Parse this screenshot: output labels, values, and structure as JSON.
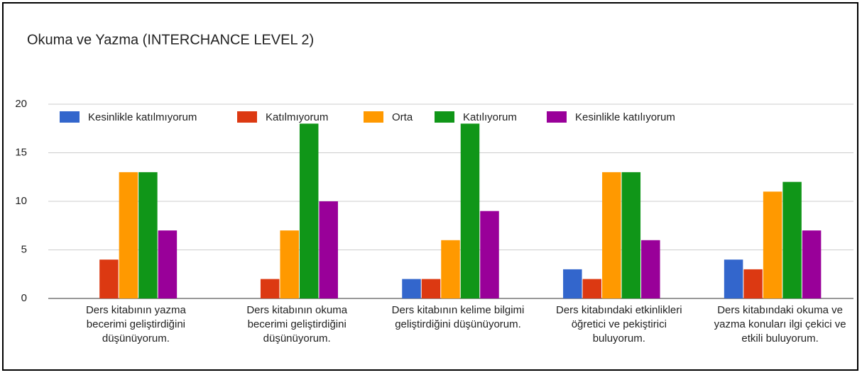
{
  "chart_data": {
    "type": "bar",
    "title": "Okuma ve Yazma (INTERCHANCE LEVEL 2)",
    "categories": [
      "Ders kitabının yazma becerimi geliştirdiğini düşünüyorum.",
      "Ders kitabının okuma becerimi geliştirdiğini düşünüyorum.",
      "Ders kitabının kelime bilgimi geliştirdiğini düşünüyorum.",
      "Ders kitabındaki etkinlikleri öğretici ve pekiştirici buluyorum.",
      "Ders kitabındaki okuma ve yazma konuları ilgi çekici ve etkili buluyorum."
    ],
    "series": [
      {
        "name": "Kesinlikle katılmıyorum",
        "color": "#3366cc",
        "values": [
          0,
          0,
          2,
          3,
          4
        ]
      },
      {
        "name": "Katılmıyorum",
        "color": "#dc3912",
        "values": [
          4,
          2,
          2,
          2,
          3
        ]
      },
      {
        "name": "Orta",
        "color": "#ff9900",
        "values": [
          13,
          7,
          6,
          13,
          11
        ]
      },
      {
        "name": "Katılıyorum",
        "color": "#109618",
        "values": [
          13,
          18,
          18,
          13,
          12
        ]
      },
      {
        "name": "Kesinlikle katılıyorum",
        "color": "#990099",
        "values": [
          7,
          10,
          9,
          6,
          7
        ]
      }
    ],
    "ylim": [
      0,
      20
    ],
    "yticks": [
      0,
      5,
      10,
      15,
      20
    ],
    "grid": true,
    "legend": "top"
  }
}
